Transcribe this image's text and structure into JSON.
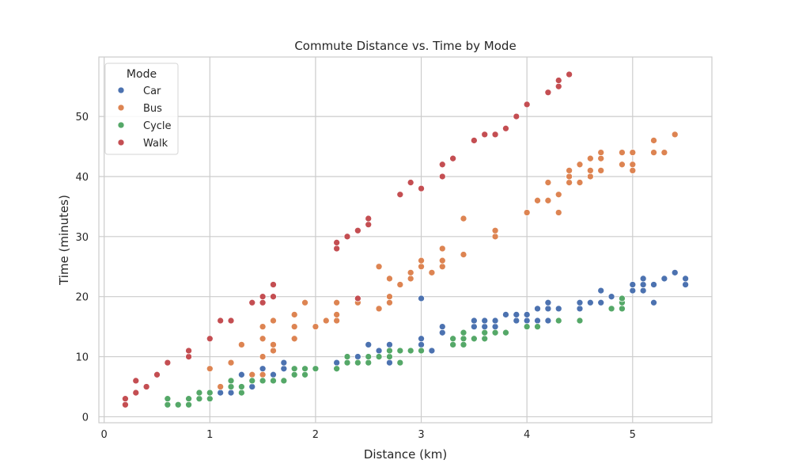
{
  "chart_data": {
    "type": "scatter",
    "title": "Commute Distance vs. Time by Mode",
    "xlabel": "Distance (km)",
    "ylabel": "Time (minutes)",
    "xlim": [
      -0.05,
      5.75
    ],
    "ylim": [
      -1.0,
      59.9
    ],
    "xticks": [
      0,
      1,
      2,
      3,
      4,
      5
    ],
    "yticks": [
      0,
      10,
      20,
      30,
      40,
      50
    ],
    "grid": true,
    "legend": {
      "title": "Mode",
      "placement": "top-left"
    },
    "series": [
      {
        "name": "Car",
        "color": "#4c72b0",
        "points": [
          [
            1.1,
            4
          ],
          [
            1.2,
            4
          ],
          [
            1.3,
            5
          ],
          [
            1.3,
            7
          ],
          [
            1.4,
            5
          ],
          [
            1.4,
            6
          ],
          [
            1.5,
            7
          ],
          [
            1.5,
            8
          ],
          [
            1.6,
            7
          ],
          [
            1.7,
            8
          ],
          [
            1.7,
            9
          ],
          [
            1.8,
            8
          ],
          [
            2.2,
            9
          ],
          [
            2.4,
            10
          ],
          [
            2.5,
            12
          ],
          [
            2.6,
            11
          ],
          [
            2.7,
            9
          ],
          [
            2.7,
            11
          ],
          [
            2.7,
            12
          ],
          [
            3.0,
            11
          ],
          [
            3.0,
            12
          ],
          [
            3.0,
            13
          ],
          [
            3.0,
            19.7
          ],
          [
            3.1,
            11
          ],
          [
            3.2,
            14
          ],
          [
            3.2,
            15
          ],
          [
            3.4,
            14
          ],
          [
            3.5,
            15
          ],
          [
            3.5,
            16
          ],
          [
            3.6,
            15
          ],
          [
            3.6,
            16
          ],
          [
            3.7,
            15
          ],
          [
            3.7,
            16
          ],
          [
            3.8,
            17
          ],
          [
            3.9,
            16
          ],
          [
            3.9,
            17
          ],
          [
            4.0,
            16
          ],
          [
            4.0,
            17
          ],
          [
            4.1,
            16
          ],
          [
            4.1,
            18
          ],
          [
            4.2,
            16
          ],
          [
            4.2,
            18
          ],
          [
            4.2,
            19
          ],
          [
            4.3,
            18
          ],
          [
            4.5,
            18
          ],
          [
            4.5,
            19
          ],
          [
            4.6,
            19
          ],
          [
            4.7,
            19
          ],
          [
            4.7,
            21
          ],
          [
            4.8,
            20
          ],
          [
            4.9,
            19
          ],
          [
            5.0,
            21
          ],
          [
            5.0,
            22
          ],
          [
            5.1,
            21
          ],
          [
            5.1,
            22
          ],
          [
            5.1,
            23
          ],
          [
            5.2,
            19
          ],
          [
            5.2,
            22
          ],
          [
            5.3,
            23
          ],
          [
            5.4,
            24
          ],
          [
            5.5,
            22
          ],
          [
            5.5,
            23
          ]
        ]
      },
      {
        "name": "Bus",
        "color": "#dd8452",
        "points": [
          [
            1.0,
            4
          ],
          [
            1.0,
            8
          ],
          [
            1.1,
            5
          ],
          [
            1.2,
            9
          ],
          [
            1.3,
            12
          ],
          [
            1.4,
            7
          ],
          [
            1.5,
            7
          ],
          [
            1.5,
            10
          ],
          [
            1.5,
            13
          ],
          [
            1.5,
            15
          ],
          [
            1.6,
            11
          ],
          [
            1.6,
            12
          ],
          [
            1.6,
            16
          ],
          [
            1.8,
            13
          ],
          [
            1.8,
            15
          ],
          [
            1.8,
            17
          ],
          [
            1.9,
            19
          ],
          [
            2.0,
            15
          ],
          [
            2.1,
            16
          ],
          [
            2.2,
            16
          ],
          [
            2.2,
            17
          ],
          [
            2.2,
            19
          ],
          [
            2.4,
            19
          ],
          [
            2.6,
            18
          ],
          [
            2.6,
            25
          ],
          [
            2.7,
            19
          ],
          [
            2.7,
            20
          ],
          [
            2.7,
            23
          ],
          [
            2.8,
            22
          ],
          [
            2.9,
            23
          ],
          [
            2.9,
            24
          ],
          [
            3.0,
            25
          ],
          [
            3.0,
            26
          ],
          [
            3.1,
            24
          ],
          [
            3.2,
            25
          ],
          [
            3.2,
            26
          ],
          [
            3.2,
            28
          ],
          [
            3.4,
            27
          ],
          [
            3.4,
            33
          ],
          [
            3.7,
            30
          ],
          [
            3.7,
            31
          ],
          [
            4.0,
            34
          ],
          [
            4.1,
            36
          ],
          [
            4.2,
            36
          ],
          [
            4.2,
            39
          ],
          [
            4.3,
            34
          ],
          [
            4.3,
            37
          ],
          [
            4.4,
            39
          ],
          [
            4.4,
            40
          ],
          [
            4.4,
            41
          ],
          [
            4.5,
            39
          ],
          [
            4.5,
            42
          ],
          [
            4.6,
            40
          ],
          [
            4.6,
            41
          ],
          [
            4.6,
            43
          ],
          [
            4.7,
            41
          ],
          [
            4.7,
            43
          ],
          [
            4.7,
            44
          ],
          [
            4.9,
            42
          ],
          [
            4.9,
            44
          ],
          [
            5.0,
            41
          ],
          [
            5.0,
            42
          ],
          [
            5.0,
            44
          ],
          [
            5.2,
            44
          ],
          [
            5.2,
            46
          ],
          [
            5.3,
            44
          ],
          [
            5.4,
            47
          ]
        ]
      },
      {
        "name": "Cycle",
        "color": "#55a868",
        "points": [
          [
            0.6,
            2
          ],
          [
            0.6,
            3
          ],
          [
            0.7,
            2
          ],
          [
            0.8,
            2
          ],
          [
            0.8,
            3
          ],
          [
            0.9,
            3
          ],
          [
            0.9,
            4
          ],
          [
            1.0,
            3
          ],
          [
            1.0,
            4
          ],
          [
            1.2,
            5
          ],
          [
            1.2,
            6
          ],
          [
            1.3,
            4
          ],
          [
            1.3,
            5
          ],
          [
            1.4,
            6
          ],
          [
            1.5,
            6
          ],
          [
            1.6,
            6
          ],
          [
            1.7,
            6
          ],
          [
            1.8,
            7
          ],
          [
            1.8,
            8
          ],
          [
            1.9,
            7
          ],
          [
            1.9,
            8
          ],
          [
            2.0,
            8
          ],
          [
            2.2,
            8
          ],
          [
            2.3,
            9
          ],
          [
            2.3,
            10
          ],
          [
            2.4,
            9
          ],
          [
            2.5,
            9
          ],
          [
            2.5,
            10
          ],
          [
            2.6,
            10
          ],
          [
            2.7,
            10
          ],
          [
            2.7,
            11
          ],
          [
            2.8,
            9
          ],
          [
            2.8,
            11
          ],
          [
            2.9,
            11
          ],
          [
            3.0,
            11
          ],
          [
            3.3,
            12
          ],
          [
            3.3,
            13
          ],
          [
            3.4,
            12
          ],
          [
            3.4,
            13
          ],
          [
            3.4,
            14
          ],
          [
            3.5,
            13
          ],
          [
            3.6,
            13
          ],
          [
            3.6,
            14
          ],
          [
            3.7,
            14
          ],
          [
            3.8,
            14
          ],
          [
            4.0,
            15
          ],
          [
            4.1,
            15
          ],
          [
            4.3,
            16
          ],
          [
            4.5,
            16
          ],
          [
            4.8,
            18
          ],
          [
            4.9,
            18
          ],
          [
            4.9,
            19
          ],
          [
            4.9,
            19.7
          ]
        ]
      },
      {
        "name": "Walk",
        "color": "#c44e52",
        "points": [
          [
            0.2,
            2
          ],
          [
            0.2,
            3
          ],
          [
            0.3,
            4
          ],
          [
            0.3,
            6
          ],
          [
            0.4,
            5
          ],
          [
            0.5,
            7
          ],
          [
            0.6,
            9
          ],
          [
            0.8,
            10
          ],
          [
            0.8,
            11
          ],
          [
            1.0,
            13
          ],
          [
            1.1,
            16
          ],
          [
            1.2,
            16
          ],
          [
            1.4,
            19
          ],
          [
            1.5,
            19
          ],
          [
            1.5,
            20
          ],
          [
            1.6,
            20
          ],
          [
            1.6,
            22
          ],
          [
            2.2,
            28
          ],
          [
            2.2,
            29
          ],
          [
            2.3,
            30
          ],
          [
            2.4,
            19.7
          ],
          [
            2.4,
            31
          ],
          [
            2.5,
            32
          ],
          [
            2.5,
            33
          ],
          [
            2.8,
            37
          ],
          [
            2.9,
            39
          ],
          [
            3.0,
            38
          ],
          [
            3.2,
            40
          ],
          [
            3.2,
            42
          ],
          [
            3.3,
            43
          ],
          [
            3.5,
            46
          ],
          [
            3.6,
            47
          ],
          [
            3.7,
            47
          ],
          [
            3.8,
            48
          ],
          [
            3.9,
            50
          ],
          [
            4.0,
            52
          ],
          [
            4.2,
            54
          ],
          [
            4.3,
            55
          ],
          [
            4.3,
            56
          ],
          [
            4.4,
            57
          ]
        ]
      }
    ]
  }
}
